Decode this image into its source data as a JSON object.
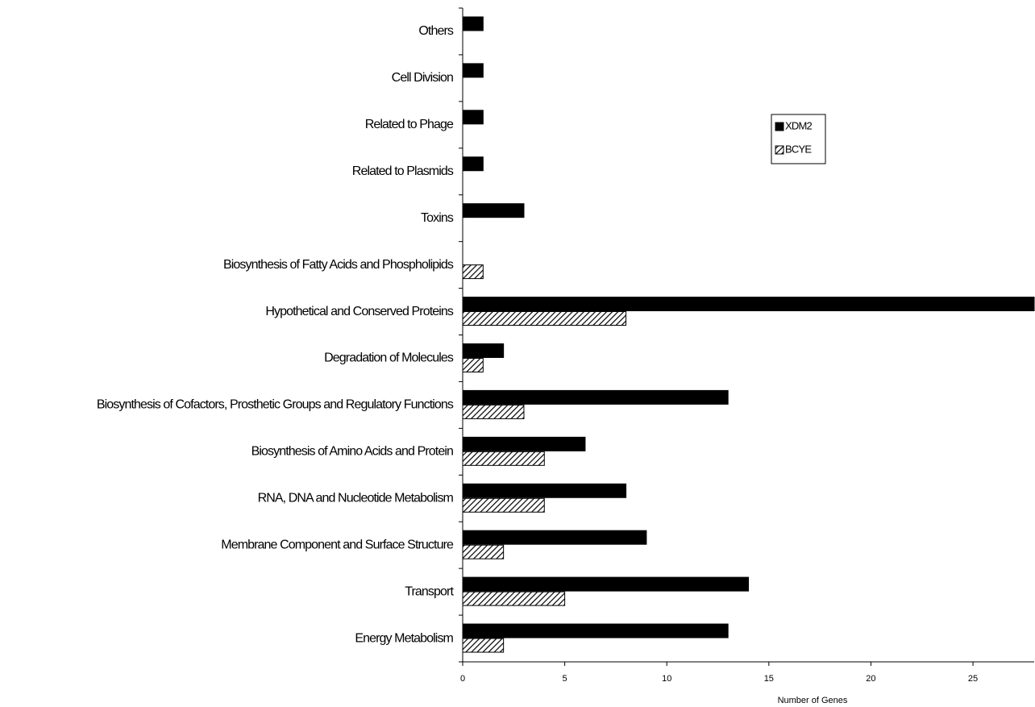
{
  "chart_data": {
    "type": "barh",
    "categories": [
      "Energy Metabolism",
      "Transport",
      "Membrane Component and Surface Structure",
      "RNA, DNA and Nucleotide Metabolism",
      "Biosynthesis of Amino Acids and Protein",
      "Biosynthesis of Cofactors, Prosthetic Groups and Regulatory Functions",
      "Degradation of Molecules",
      "Hypothetical and Conserved Proteins",
      "Biosynthesis of Fatty Acids and Phospholipids",
      "Toxins",
      "Related to Plasmids",
      "Related to Phage",
      "Cell Division",
      "Others"
    ],
    "series": [
      {
        "name": "XDM2",
        "color": "#000000",
        "hatch": false,
        "values": [
          13,
          14,
          9,
          8,
          6,
          13,
          2,
          28,
          null,
          3,
          1,
          1,
          1,
          1
        ]
      },
      {
        "name": "BCYE",
        "color": "#000000",
        "hatch": true,
        "values": [
          2,
          5,
          2,
          4,
          4,
          3,
          1,
          8,
          1,
          null,
          null,
          null,
          null,
          null
        ]
      }
    ],
    "xlabel": "Number of Genes",
    "xlim": [
      0,
      28
    ],
    "xticks": [
      0,
      5,
      10,
      15,
      20,
      25
    ],
    "legend": "upper right"
  }
}
